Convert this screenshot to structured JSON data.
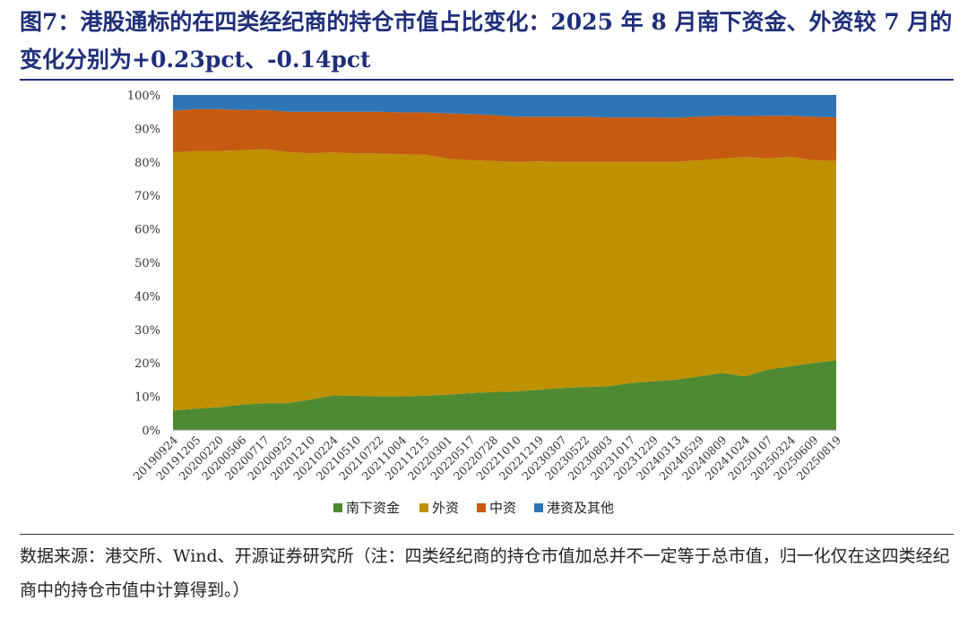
{
  "title": "图7：港股通标的在四类经纪商的持仓市值占比变化：2025 年 8 月南下资金、外资较 7 月的变化分别为+0.23pct、-0.14pct",
  "source": "数据来源：港交所、Wind、开源证券研究所（注：四类经纪商的持仓市值加总并不一定等于总市值，归一化仅在这四类经纪商中的持仓市值中计算得到。）",
  "chart_data": {
    "type": "area",
    "stacked": true,
    "x": [
      "20190924",
      "20191205",
      "20200220",
      "20200506",
      "20200717",
      "20200925",
      "20201210",
      "20210224",
      "20210510",
      "20210722",
      "20211004",
      "20211215",
      "20220301",
      "20220517",
      "20220728",
      "20221010",
      "20221219",
      "20230307",
      "20230522",
      "20230803",
      "20231017",
      "20231229",
      "20240313",
      "20240529",
      "20240809",
      "20241024",
      "20250107",
      "20250324",
      "20250609",
      "20250819"
    ],
    "series": [
      {
        "name": "南下资金",
        "color": "#4e8a31",
        "values": [
          5.8,
          6.3,
          6.8,
          7.5,
          8.0,
          8.0,
          9.0,
          10.3,
          10.2,
          10.0,
          10.0,
          10.2,
          10.5,
          11.0,
          11.3,
          11.5,
          12.0,
          12.5,
          12.8,
          13.0,
          14.0,
          14.5,
          15.0,
          16.0,
          17.0,
          16.0,
          18.0,
          19.0,
          20.0,
          20.8
        ]
      },
      {
        "name": "外资",
        "color": "#bf9000",
        "values": [
          77.0,
          77.0,
          76.5,
          76.0,
          75.8,
          75.0,
          73.5,
          72.5,
          72.3,
          72.5,
          72.3,
          72.0,
          70.5,
          69.5,
          69.0,
          68.5,
          68.2,
          67.5,
          67.2,
          67.0,
          66.0,
          65.5,
          65.0,
          64.5,
          64.0,
          65.5,
          63.0,
          62.5,
          60.5,
          59.5
        ]
      },
      {
        "name": "中资",
        "color": "#c55a11",
        "values": [
          12.5,
          12.5,
          12.5,
          12.0,
          11.8,
          12.0,
          12.5,
          12.2,
          12.5,
          12.5,
          12.5,
          12.6,
          13.5,
          13.8,
          13.7,
          13.5,
          13.3,
          13.5,
          13.5,
          13.3,
          13.3,
          13.3,
          13.2,
          13.0,
          12.8,
          12.2,
          12.8,
          12.3,
          13.0,
          13.0
        ]
      },
      {
        "name": "港资及其他",
        "color": "#2e75b6",
        "values": [
          4.7,
          4.2,
          4.2,
          4.5,
          4.4,
          5.0,
          5.0,
          5.0,
          5.0,
          5.0,
          5.2,
          5.2,
          5.5,
          5.7,
          6.0,
          6.5,
          6.5,
          6.5,
          6.5,
          6.7,
          6.7,
          6.7,
          6.8,
          6.5,
          6.2,
          6.3,
          6.2,
          6.2,
          6.5,
          6.7
        ]
      }
    ],
    "yticks": [
      "0%",
      "10%",
      "20%",
      "30%",
      "40%",
      "50%",
      "60%",
      "70%",
      "80%",
      "90%",
      "100%"
    ],
    "ylim": [
      0,
      100
    ],
    "legend_position": "bottom"
  }
}
